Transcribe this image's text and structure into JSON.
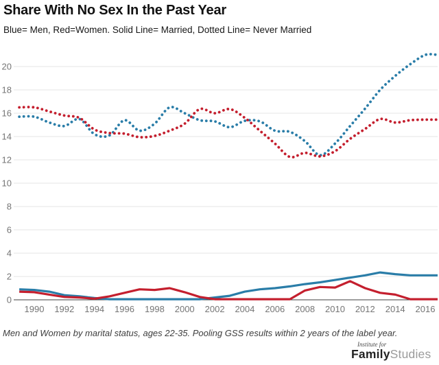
{
  "header": {
    "title": "Share With No Sex In the Past Year",
    "subtitle": "Blue= Men, Red=Women. Solid Line= Married, Dotted Line= Never Married"
  },
  "footer": {
    "caption": "Men and Women by marital status, ages 22-35. Pooling GSS results within 2 years of the label year.",
    "logo_top": "Institute for",
    "logo_bold": "Family",
    "logo_light": "Studies"
  },
  "colors": {
    "men": "#2a7da8",
    "women": "#c41f2e",
    "grid": "#e4e4e4",
    "axis": "#3c3c3c",
    "tick_label": "#757575"
  },
  "chart_data": {
    "type": "line",
    "title": "Share With No Sex In the Past Year",
    "xlabel": "",
    "ylabel": "",
    "x": [
      1989,
      1990,
      1991,
      1992,
      1993,
      1994,
      1995,
      1996,
      1997,
      1998,
      1999,
      2000,
      2001,
      2002,
      2003,
      2004,
      2005,
      2006,
      2007,
      2008,
      2009,
      2010,
      2011,
      2012,
      2013,
      2014,
      2015,
      2016
    ],
    "series": [
      {
        "name": "Men, Never Married",
        "color_key": "men",
        "style": "dotted",
        "values": [
          15.7,
          15.7,
          15.2,
          14.9,
          15.5,
          14.2,
          14.1,
          15.4,
          14.5,
          15.1,
          16.5,
          16.0,
          15.4,
          15.3,
          14.8,
          15.35,
          15.3,
          14.5,
          14.4,
          13.6,
          12.4,
          13.4,
          14.9,
          16.4,
          18.0,
          19.2,
          20.2,
          21.0
        ]
      },
      {
        "name": "Women, Never Married",
        "color_key": "women",
        "style": "dotted",
        "values": [
          16.5,
          16.5,
          16.15,
          15.8,
          15.6,
          14.6,
          14.3,
          14.25,
          13.95,
          14.05,
          14.5,
          15.1,
          16.35,
          16.0,
          16.35,
          15.6,
          14.5,
          13.4,
          12.25,
          12.6,
          12.3,
          12.75,
          13.8,
          14.65,
          15.5,
          15.2,
          15.4,
          15.45
        ]
      },
      {
        "name": "Men, Married",
        "color_key": "men",
        "style": "solid",
        "values": [
          0.9,
          0.85,
          0.7,
          0.4,
          0.3,
          0.15,
          0.05,
          0.05,
          0.05,
          0.05,
          0.05,
          0.05,
          0.05,
          0.2,
          0.35,
          0.7,
          0.9,
          1.0,
          1.15,
          1.35,
          1.5,
          1.7,
          1.9,
          2.1,
          2.35,
          2.2,
          2.1,
          2.1
        ]
      },
      {
        "name": "Women, Married",
        "color_key": "women",
        "style": "solid",
        "values": [
          0.7,
          0.65,
          0.45,
          0.25,
          0.2,
          0.1,
          0.3,
          0.6,
          0.9,
          0.85,
          1.0,
          0.65,
          0.25,
          0.05,
          0.05,
          0.05,
          0.05,
          0.05,
          0.05,
          0.8,
          1.1,
          1.05,
          1.6,
          1.0,
          0.6,
          0.45,
          0.05,
          0.05
        ]
      }
    ],
    "xticks": [
      1990,
      1992,
      1994,
      1996,
      1998,
      2000,
      2002,
      2004,
      2006,
      2008,
      2010,
      2012,
      2014,
      2016
    ],
    "yticks": [
      0,
      2,
      4,
      6,
      8,
      10,
      12,
      14,
      16,
      18,
      20
    ],
    "xlim": [
      1988.8,
      2016.8
    ],
    "ylim": [
      0,
      21.5
    ],
    "grid": "horizontal",
    "legend": "none"
  }
}
